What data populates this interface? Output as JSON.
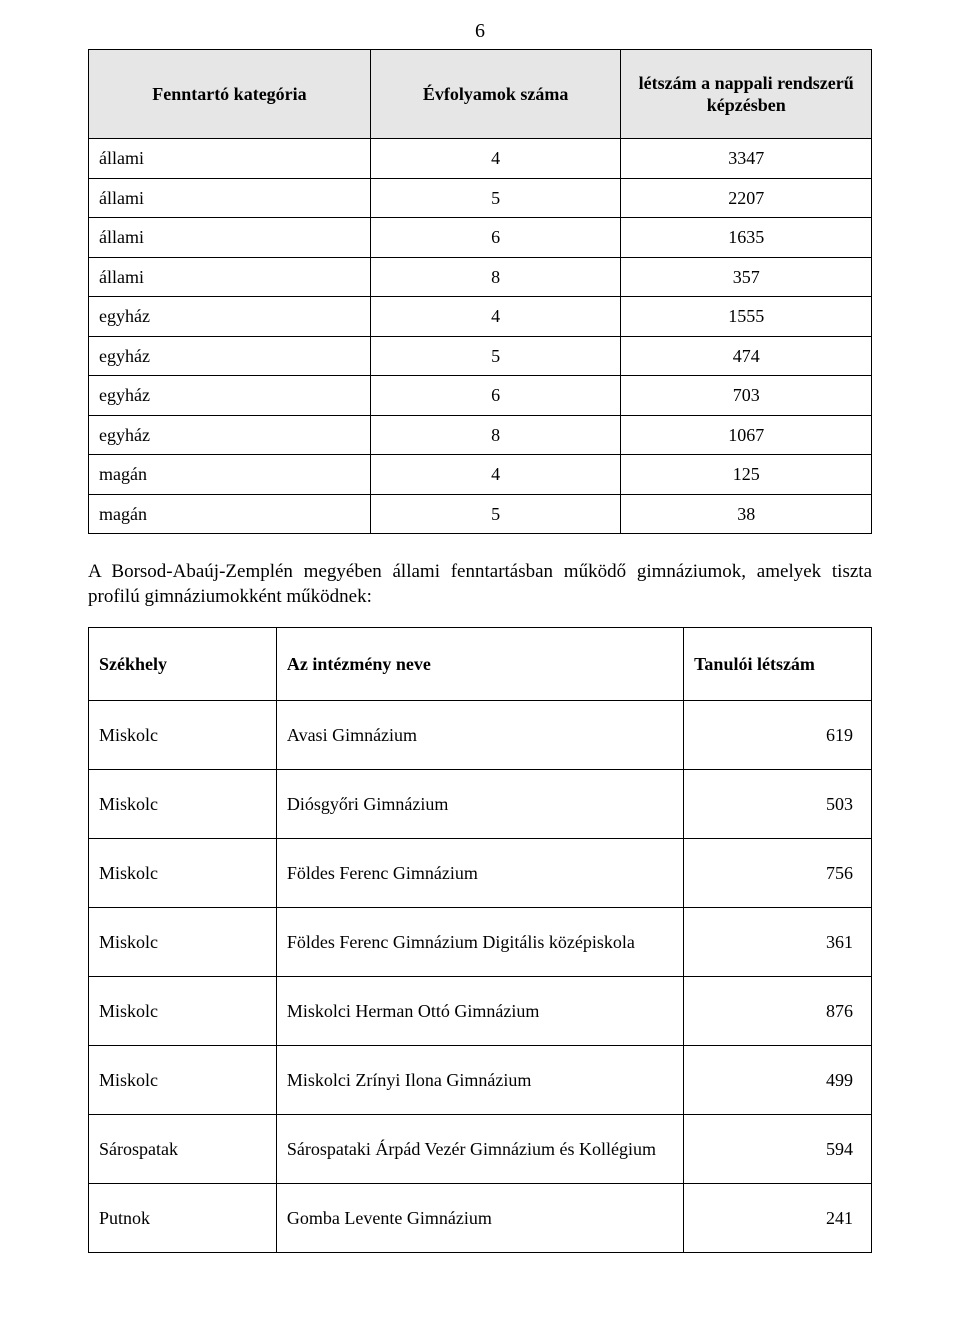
{
  "page_number": "6",
  "table1": {
    "headers": [
      "Fenntartó kategória",
      "Évfolyamok száma",
      "létszám a nappali rendszerű képzésben"
    ],
    "rows": [
      [
        "állami",
        "4",
        "3347"
      ],
      [
        "állami",
        "5",
        "2207"
      ],
      [
        "állami",
        "6",
        "1635"
      ],
      [
        "állami",
        "8",
        "357"
      ],
      [
        "egyház",
        "4",
        "1555"
      ],
      [
        "egyház",
        "5",
        "474"
      ],
      [
        "egyház",
        "6",
        "703"
      ],
      [
        "egyház",
        "8",
        "1067"
      ],
      [
        "magán",
        "4",
        "125"
      ],
      [
        "magán",
        "5",
        "38"
      ]
    ]
  },
  "paragraph": "A Borsod-Abaúj-Zemplén megyében állami fenntartásban működő gimnáziumok, amelyek tiszta profilú gimnáziumokként működnek:",
  "table2": {
    "headers": [
      "Székhely",
      "Az intézmény neve",
      "Tanulói létszám"
    ],
    "rows": [
      [
        "Miskolc",
        "Avasi Gimnázium",
        "619"
      ],
      [
        "Miskolc",
        "Diósgyőri Gimnázium",
        "503"
      ],
      [
        "Miskolc",
        "Földes Ferenc Gimnázium",
        "756"
      ],
      [
        "Miskolc",
        "Földes Ferenc Gimnázium Digitális középiskola",
        "361"
      ],
      [
        "Miskolc",
        "Miskolci Herman Ottó Gimnázium",
        "876"
      ],
      [
        "Miskolc",
        "Miskolci Zrínyi Ilona Gimnázium",
        "499"
      ],
      [
        "Sárospatak",
        "Sárospataki Árpád Vezér Gimnázium és Kollégium",
        "594"
      ],
      [
        "Putnok",
        "Gomba Levente Gimnázium",
        "241"
      ]
    ]
  },
  "colors": {
    "header_bg": "#e6e6e6",
    "border": "#000000",
    "text": "#000000",
    "background": "#ffffff"
  },
  "typography": {
    "font_family": "Times New Roman",
    "body_fontsize_pt": 14,
    "header_fontweight": "bold"
  }
}
